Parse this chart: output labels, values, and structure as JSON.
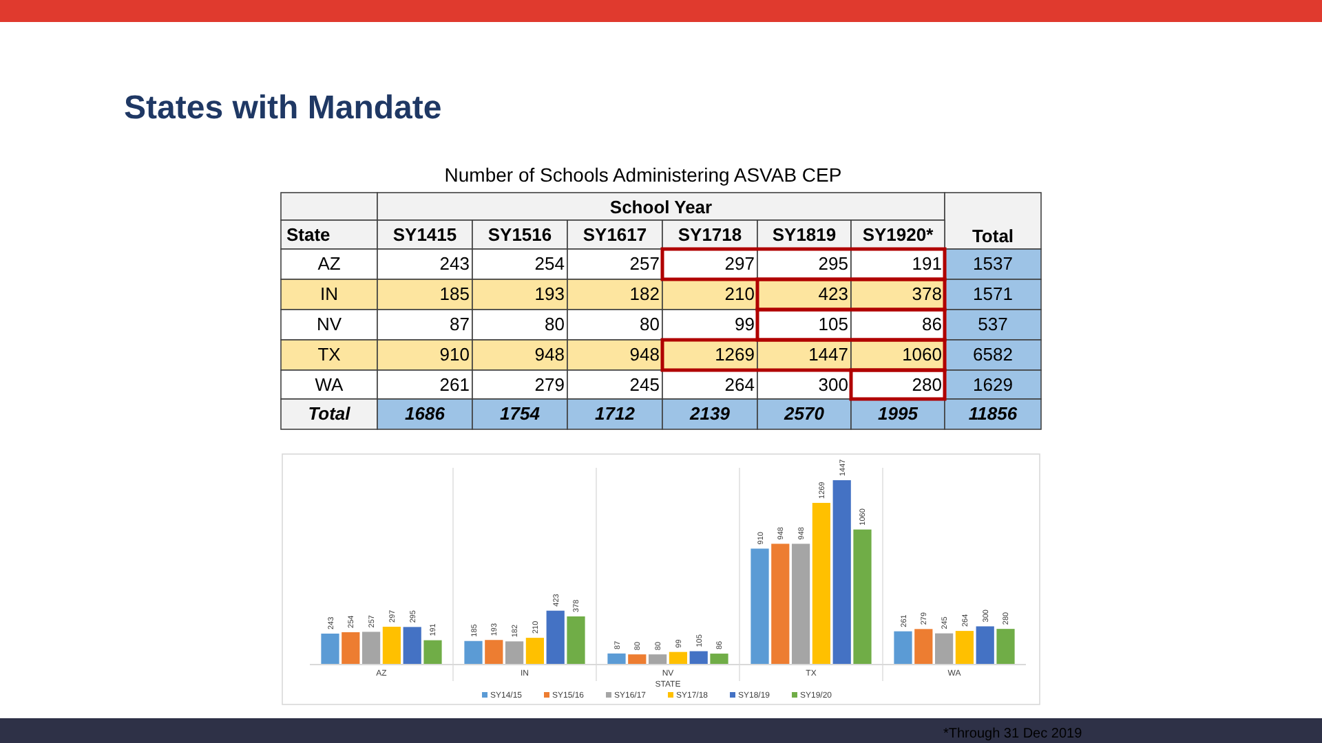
{
  "chart_data": [
    {
      "type": "heatmap",
      "title": "States with Mandate",
      "subtitle": "Number of Schools Administering ASVAB CEP",
      "xlabel": "School Year",
      "ylabel": "State",
      "categories": [
        "SY1415",
        "SY1516",
        "SY1617",
        "SY1718",
        "SY1819",
        "SY1920*",
        "Total"
      ],
      "y_categories": [
        "AZ",
        "IN",
        "NV",
        "TX",
        "WA",
        "Total"
      ],
      "cells": [
        [
          243,
          254,
          257,
          297,
          295,
          191,
          1537
        ],
        [
          185,
          193,
          182,
          210,
          423,
          378,
          1571
        ],
        [
          87,
          80,
          80,
          99,
          105,
          86,
          537
        ],
        [
          910,
          948,
          948,
          1269,
          1447,
          1060,
          6582
        ],
        [
          261,
          279,
          245,
          264,
          300,
          280,
          1629
        ],
        [
          1686,
          1754,
          1712,
          2139,
          2570,
          1995,
          11856
        ]
      ],
      "data_labels": true
    },
    {
      "type": "bar",
      "xlabel": "STATE",
      "categories": [
        "AZ",
        "IN",
        "NV",
        "TX",
        "WA"
      ],
      "series": [
        {
          "name": "SY14/15",
          "color": "#5b9bd5",
          "values": [
            243,
            185,
            87,
            910,
            261
          ]
        },
        {
          "name": "SY15/16",
          "color": "#ed7d31",
          "values": [
            254,
            193,
            80,
            948,
            279
          ]
        },
        {
          "name": "SY16/17",
          "color": "#a5a5a5",
          "values": [
            257,
            182,
            80,
            948,
            245
          ]
        },
        {
          "name": "SY17/18",
          "color": "#ffc000",
          "values": [
            297,
            210,
            99,
            1269,
            264
          ]
        },
        {
          "name": "SY18/19",
          "color": "#4472c4",
          "values": [
            295,
            423,
            105,
            1447,
            300
          ]
        },
        {
          "name": "SY19/20",
          "color": "#70ad47",
          "values": [
            191,
            378,
            86,
            1060,
            280
          ]
        }
      ],
      "data_labels": true,
      "legend": "bottom",
      "annotations": [
        "*Through 31 Dec 2019"
      ]
    }
  ]
}
